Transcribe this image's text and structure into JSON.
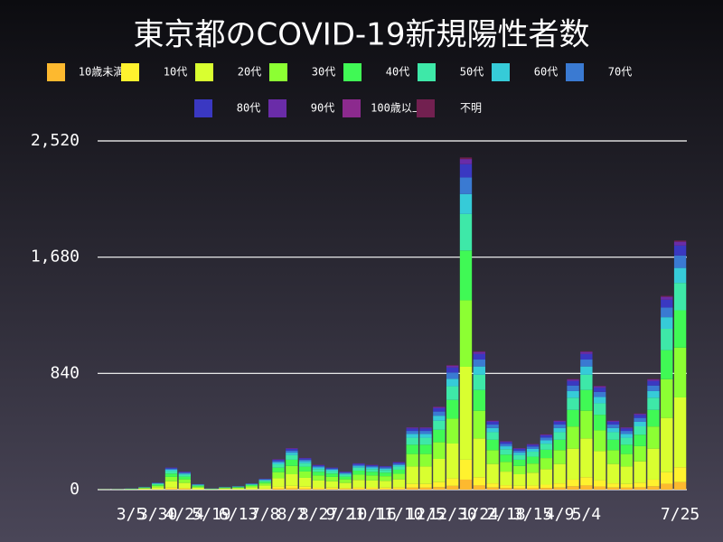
{
  "chart_data": {
    "type": "stacked-bar",
    "title": "東京都のCOVID-19新規陽性者数",
    "categories": [
      null,
      null,
      "3/5",
      null,
      "3/30",
      null,
      "4/24",
      null,
      "5/19",
      null,
      "6/13",
      null,
      "7/8",
      null,
      "8/2",
      null,
      "8/27",
      null,
      "9/21",
      null,
      "10/16",
      null,
      "11/10",
      null,
      "12/5",
      null,
      "12/30",
      null,
      "1/24",
      null,
      "2/18",
      null,
      "3/15",
      null,
      "4/9",
      null,
      "5/4",
      null,
      null,
      null,
      null,
      null,
      null,
      "7/25"
    ],
    "ylim": [
      0,
      2520
    ],
    "yticks": [
      0,
      840,
      {
        "value": 1680,
        "label": "1,680"
      },
      {
        "value": 2520,
        "label": "2,520"
      }
    ],
    "grid": true,
    "series": [
      {
        "name": "10歳未満",
        "color": "#fdb92f",
        "values": [
          0,
          0,
          0,
          1,
          1,
          5,
          4,
          1,
          0,
          1,
          1,
          1,
          2,
          7,
          9,
          7,
          5,
          5,
          4,
          6,
          5,
          5,
          6,
          14,
          14,
          18,
          27,
          72,
          30,
          15,
          11,
          9,
          10,
          12,
          15,
          24,
          30,
          23,
          15,
          14,
          17,
          24,
          42,
          54
        ]
      },
      {
        "name": "10代",
        "color": "#fff22e",
        "values": [
          0,
          0,
          0,
          1,
          3,
          10,
          8,
          2,
          0,
          1,
          1,
          3,
          5,
          13,
          18,
          14,
          11,
          10,
          8,
          11,
          11,
          10,
          12,
          27,
          27,
          36,
          54,
          144,
          60,
          30,
          21,
          18,
          20,
          24,
          30,
          48,
          60,
          45,
          30,
          27,
          33,
          48,
          84,
          108
        ]
      },
      {
        "name": "20代",
        "color": "#d9ff30",
        "values": [
          1,
          1,
          2,
          6,
          14,
          45,
          36,
          11,
          2,
          6,
          7,
          13,
          22,
          62,
          84,
          64,
          50,
          45,
          36,
          53,
          50,
          48,
          56,
          126,
          126,
          168,
          252,
          672,
          280,
          140,
          98,
          84,
          92,
          112,
          140,
          224,
          280,
          210,
          140,
          126,
          154,
          224,
          392,
          504
        ]
      },
      {
        "name": "30代",
        "color": "#8cff33",
        "values": [
          0,
          1,
          2,
          4,
          10,
          32,
          26,
          8,
          2,
          4,
          5,
          9,
          16,
          44,
          60,
          46,
          36,
          32,
          26,
          38,
          36,
          34,
          40,
          90,
          90,
          120,
          180,
          480,
          200,
          100,
          70,
          60,
          66,
          80,
          100,
          160,
          200,
          150,
          100,
          90,
          110,
          160,
          280,
          360
        ]
      },
      {
        "name": "40代",
        "color": "#40f955",
        "values": [
          1,
          0,
          1,
          3,
          8,
          24,
          20,
          6,
          1,
          3,
          4,
          7,
          12,
          33,
          45,
          35,
          27,
          24,
          20,
          29,
          27,
          26,
          30,
          68,
          68,
          90,
          135,
          360,
          150,
          75,
          53,
          45,
          50,
          60,
          75,
          120,
          150,
          113,
          75,
          68,
          83,
          120,
          210,
          270
        ]
      },
      {
        "name": "50代",
        "color": "#3ee8a8",
        "values": [
          0,
          1,
          1,
          2,
          6,
          18,
          14,
          5,
          1,
          2,
          3,
          5,
          9,
          24,
          33,
          25,
          20,
          18,
          14,
          21,
          20,
          19,
          22,
          50,
          50,
          66,
          99,
          264,
          110,
          55,
          39,
          33,
          36,
          44,
          55,
          88,
          110,
          83,
          55,
          50,
          60,
          88,
          154,
          198
        ]
      },
      {
        "name": "60代",
        "color": "#36cbd8",
        "values": [
          0,
          0,
          1,
          1,
          3,
          10,
          8,
          3,
          1,
          1,
          2,
          3,
          5,
          13,
          18,
          14,
          11,
          10,
          8,
          11,
          11,
          10,
          12,
          27,
          27,
          36,
          54,
          144,
          60,
          30,
          21,
          18,
          20,
          24,
          30,
          48,
          60,
          45,
          30,
          27,
          33,
          48,
          84,
          108
        ]
      },
      {
        "name": "70代",
        "color": "#3a7ad2",
        "values": [
          0,
          0,
          1,
          1,
          3,
          8,
          7,
          2,
          1,
          1,
          1,
          2,
          4,
          11,
          15,
          12,
          9,
          8,
          7,
          10,
          9,
          9,
          10,
          22,
          22,
          30,
          45,
          120,
          50,
          25,
          17,
          15,
          17,
          20,
          25,
          40,
          50,
          37,
          25,
          22,
          28,
          40,
          70,
          90
        ]
      },
      {
        "name": "80代",
        "color": "#3a38c2",
        "values": [
          0,
          0,
          0,
          1,
          2,
          6,
          5,
          2,
          0,
          1,
          1,
          2,
          3,
          9,
          12,
          9,
          7,
          6,
          5,
          8,
          7,
          7,
          8,
          18,
          18,
          24,
          36,
          96,
          40,
          20,
          14,
          12,
          13,
          16,
          20,
          32,
          40,
          30,
          20,
          18,
          22,
          32,
          56,
          72
        ]
      },
      {
        "name": "90代",
        "color": "#6a2ca8",
        "values": [
          0,
          0,
          0,
          0,
          0,
          2,
          2,
          0,
          0,
          0,
          0,
          0,
          1,
          3,
          5,
          3,
          3,
          2,
          2,
          3,
          3,
          2,
          3,
          7,
          7,
          9,
          14,
          36,
          15,
          8,
          5,
          5,
          5,
          6,
          8,
          12,
          15,
          11,
          8,
          7,
          8,
          12,
          21,
          27
        ]
      },
      {
        "name": "100歳以上",
        "color": "#8c2a8e",
        "values": [
          0,
          0,
          0,
          0,
          0,
          0,
          0,
          0,
          0,
          0,
          0,
          0,
          0,
          0,
          0,
          0,
          0,
          0,
          0,
          0,
          0,
          0,
          0,
          0,
          0,
          0,
          1,
          2,
          1,
          0,
          0,
          0,
          0,
          0,
          0,
          0,
          1,
          0,
          0,
          0,
          0,
          0,
          1,
          1
        ]
      },
      {
        "name": "不明",
        "color": "#722050",
        "values": [
          0,
          0,
          0,
          0,
          0,
          0,
          0,
          0,
          0,
          0,
          0,
          0,
          1,
          1,
          1,
          1,
          1,
          0,
          0,
          0,
          1,
          0,
          1,
          1,
          1,
          3,
          3,
          10,
          4,
          2,
          1,
          1,
          1,
          2,
          2,
          4,
          4,
          3,
          2,
          1,
          2,
          4,
          6,
          8
        ]
      }
    ]
  }
}
